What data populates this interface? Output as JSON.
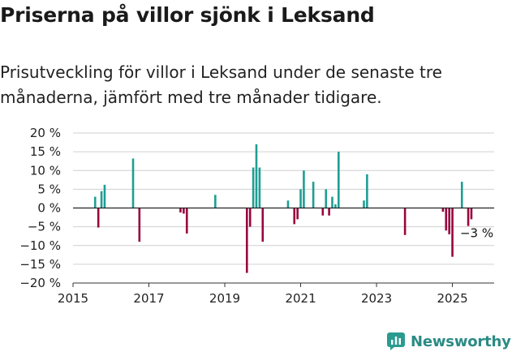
{
  "title": "Priserna på villor sjönk i Leksand",
  "subtitle": "Prisutveckling för villor i Leksand under de senaste tre månaderna, jämfört med tre månader tidigare.",
  "brand": {
    "name": "Newsworthy",
    "icon": "newsworthy-logo-icon",
    "color": "#2b9b90"
  },
  "colors": {
    "positive": "#1f9e93",
    "negative": "#99063e",
    "zero_line": "#222222",
    "grid": "#d0d0d0"
  },
  "chart_data": {
    "type": "bar",
    "x_axis": {
      "type": "time",
      "range": [
        2015.0,
        2026.1
      ],
      "ticks": [
        "2015",
        "2017",
        "2019",
        "2021",
        "2023",
        "2025"
      ]
    },
    "y_axis": {
      "unit": "%",
      "range": [
        -20,
        20
      ],
      "ticks": [
        "20 %",
        "15 %",
        "10 %",
        "5 %",
        "0 %",
        "−5 %",
        "−10 %",
        "−15 %",
        "−20 %"
      ]
    },
    "grid": "horizontal",
    "annotation": {
      "text": "−3 %",
      "x": 2025.5,
      "y": -3
    },
    "values": [
      [
        2015.583,
        3
      ],
      [
        2015.667,
        -5.2
      ],
      [
        2015.75,
        4.5
      ],
      [
        2015.833,
        6.2
      ],
      [
        2016.583,
        13.2
      ],
      [
        2016.75,
        -9
      ],
      [
        2017.833,
        -1.2
      ],
      [
        2017.917,
        -1.5
      ],
      [
        2018.0,
        -6.8
      ],
      [
        2018.75,
        3.5
      ],
      [
        2019.583,
        -17.3
      ],
      [
        2019.667,
        -5
      ],
      [
        2019.75,
        10.8
      ],
      [
        2019.833,
        17
      ],
      [
        2019.917,
        10.8
      ],
      [
        2020.0,
        -9
      ],
      [
        2020.667,
        2
      ],
      [
        2020.833,
        -4.3
      ],
      [
        2020.917,
        -3
      ],
      [
        2021.0,
        5
      ],
      [
        2021.083,
        10
      ],
      [
        2021.333,
        7
      ],
      [
        2021.583,
        -2
      ],
      [
        2021.667,
        5
      ],
      [
        2021.75,
        -2
      ],
      [
        2021.833,
        3
      ],
      [
        2021.917,
        1
      ],
      [
        2022.0,
        15
      ],
      [
        2022.667,
        2
      ],
      [
        2022.75,
        9
      ],
      [
        2023.75,
        -7.2
      ],
      [
        2024.75,
        -1
      ],
      [
        2024.833,
        -6
      ],
      [
        2024.917,
        -7
      ],
      [
        2025.0,
        -13
      ],
      [
        2025.25,
        7
      ],
      [
        2025.417,
        -4.8
      ],
      [
        2025.5,
        -3
      ]
    ]
  }
}
